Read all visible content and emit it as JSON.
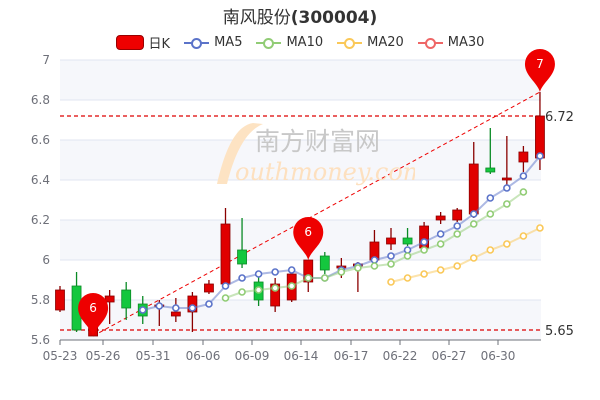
{
  "title": {
    "name": "南风股份",
    "code": "(300004)"
  },
  "legend": [
    {
      "label": "日K",
      "color": "#e00000"
    },
    {
      "label": "MA5",
      "color": "#5b73c9"
    },
    {
      "label": "MA10",
      "color": "#91cc75"
    },
    {
      "label": "MA20",
      "color": "#fac858"
    },
    {
      "label": "MA30",
      "color": "#ee6666"
    }
  ],
  "watermark": {
    "cn": "南方财富网",
    "en": "outhmoney.com"
  },
  "chart_data": {
    "type": "candlestick",
    "title": "南风股份(300004)",
    "xlabel": "",
    "ylabel": "",
    "ylim": [
      5.6,
      7.0
    ],
    "yticks": [
      5.6,
      5.8,
      6.0,
      6.2,
      6.4,
      6.6,
      6.8,
      7.0
    ],
    "xtick_labels": [
      "05-23",
      "05-26",
      "05-31",
      "06-06",
      "06-09",
      "06-14",
      "06-17",
      "06-22",
      "06-27",
      "06-30"
    ],
    "grid": true,
    "legend_position": "top",
    "candles": [
      {
        "o": 5.75,
        "c": 5.85,
        "l": 5.74,
        "h": 5.87
      },
      {
        "o": 5.87,
        "c": 5.65,
        "l": 5.64,
        "h": 5.94
      },
      {
        "o": 5.62,
        "c": 5.67,
        "l": 5.62,
        "h": 5.68
      },
      {
        "o": 5.79,
        "c": 5.82,
        "l": 5.68,
        "h": 5.85
      },
      {
        "o": 5.85,
        "c": 5.76,
        "l": 5.7,
        "h": 5.89
      },
      {
        "o": 5.78,
        "c": 5.72,
        "l": 5.68,
        "h": 5.82
      },
      {
        "o": 5.77,
        "c": 5.775,
        "l": 5.67,
        "h": 5.8
      },
      {
        "o": 5.72,
        "c": 5.74,
        "l": 5.69,
        "h": 5.81
      },
      {
        "o": 5.74,
        "c": 5.82,
        "l": 5.64,
        "h": 5.84
      },
      {
        "o": 5.84,
        "c": 5.88,
        "l": 5.83,
        "h": 5.9
      },
      {
        "o": 5.88,
        "c": 6.18,
        "l": 5.86,
        "h": 6.26
      },
      {
        "o": 6.05,
        "c": 5.98,
        "l": 5.96,
        "h": 6.21
      },
      {
        "o": 5.89,
        "c": 5.8,
        "l": 5.77,
        "h": 5.93
      },
      {
        "o": 5.77,
        "c": 5.88,
        "l": 5.74,
        "h": 5.91
      },
      {
        "o": 5.8,
        "c": 5.93,
        "l": 5.79,
        "h": 5.94
      },
      {
        "o": 5.89,
        "c": 6.0,
        "l": 5.84,
        "h": 6.0
      },
      {
        "o": 6.02,
        "c": 5.95,
        "l": 5.93,
        "h": 6.04
      },
      {
        "o": 5.96,
        "c": 5.97,
        "l": 5.91,
        "h": 6.01
      },
      {
        "o": 5.97,
        "c": 5.98,
        "l": 5.84,
        "h": 5.99
      },
      {
        "o": 6.0,
        "c": 6.09,
        "l": 5.98,
        "h": 6.15
      },
      {
        "o": 6.08,
        "c": 6.11,
        "l": 6.05,
        "h": 6.16
      },
      {
        "o": 6.11,
        "c": 6.08,
        "l": 6.07,
        "h": 6.16
      },
      {
        "o": 6.06,
        "c": 6.17,
        "l": 6.05,
        "h": 6.19
      },
      {
        "o": 6.2,
        "c": 6.22,
        "l": 6.18,
        "h": 6.24
      },
      {
        "o": 6.2,
        "c": 6.25,
        "l": 6.19,
        "h": 6.26
      },
      {
        "o": 6.23,
        "c": 6.48,
        "l": 6.21,
        "h": 6.59
      },
      {
        "o": 6.46,
        "c": 6.44,
        "l": 6.43,
        "h": 6.66
      },
      {
        "o": 6.4,
        "c": 6.41,
        "l": 6.37,
        "h": 6.62
      },
      {
        "o": 6.49,
        "c": 6.54,
        "l": 6.44,
        "h": 6.57
      },
      {
        "o": 6.51,
        "c": 6.72,
        "l": 6.45,
        "h": 6.84
      }
    ],
    "series": [
      {
        "name": "MA5",
        "start": 5,
        "values": [
          5.75,
          5.77,
          5.76,
          5.76,
          5.78,
          5.87,
          5.91,
          5.93,
          5.94,
          5.95,
          5.91,
          5.91,
          5.95,
          5.97,
          6.0,
          6.02,
          6.05,
          6.09,
          6.13,
          6.17,
          6.23,
          6.31,
          6.36,
          6.42,
          6.52
        ]
      },
      {
        "name": "MA10",
        "start": 10,
        "values": [
          5.81,
          5.84,
          5.85,
          5.86,
          5.87,
          5.91,
          5.91,
          5.94,
          5.96,
          5.97,
          5.98,
          6.02,
          6.05,
          6.08,
          6.13,
          6.18,
          6.23,
          6.28,
          6.34
        ]
      },
      {
        "name": "MA20",
        "start": 20,
        "values": [
          5.89,
          5.91,
          5.93,
          5.95,
          5.97,
          6.01,
          6.05,
          6.08,
          6.12,
          6.16
        ]
      }
    ],
    "markers": [
      {
        "label": "6",
        "index": 2,
        "value": 5.62,
        "type": "min"
      },
      {
        "label": "6",
        "index": 15,
        "value": 6.0
      },
      {
        "label": "7",
        "index": 29,
        "value": 6.84,
        "type": "max"
      }
    ],
    "reference_lines": [
      {
        "value": 6.72,
        "label": "6.72"
      },
      {
        "value": 5.65,
        "label": "5.65"
      }
    ],
    "trend_line": {
      "from": {
        "index": 2,
        "value": 5.62
      },
      "to": {
        "index": 29,
        "value": 6.84
      }
    }
  }
}
